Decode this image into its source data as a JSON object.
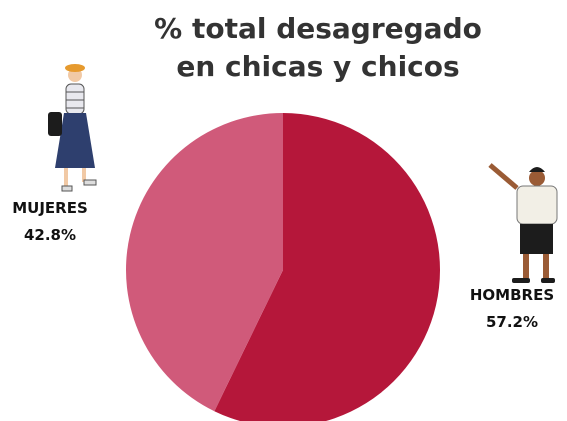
{
  "chart_data": {
    "type": "pie",
    "title": "% total desagregado en chicas y chicos",
    "categories": [
      "HOMBRES",
      "MUJERES"
    ],
    "values": [
      57.2,
      42.8
    ],
    "value_labels": [
      "57.2%",
      "42.8%"
    ],
    "colors": [
      "#b5173a",
      "#d05a7a"
    ]
  }
}
